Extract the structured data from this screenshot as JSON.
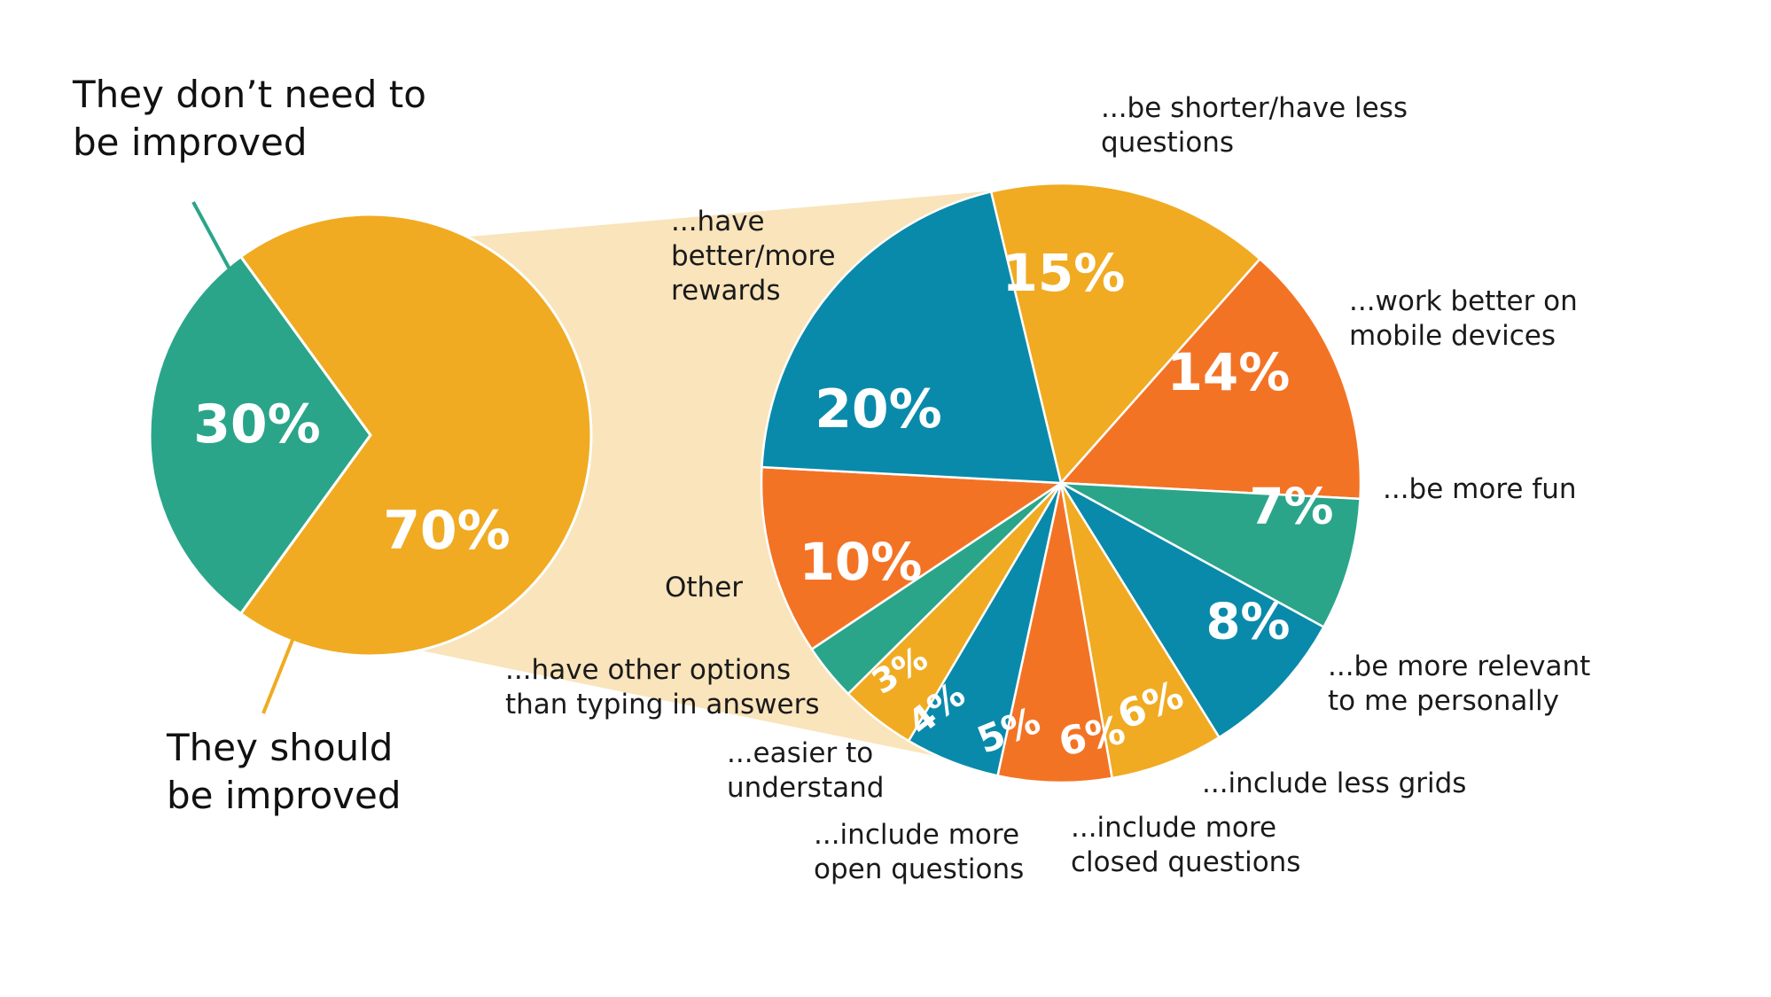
{
  "chart_data": {
    "type": "pie",
    "layout": "pie-of-pie",
    "primary": {
      "slices": [
        {
          "label": "They don’t need to be improved",
          "value": 30,
          "value_label": "30%",
          "color": "#2aa58a"
        },
        {
          "label": "They should be improved",
          "value": 70,
          "value_label": "70%",
          "color": "#f0ab22"
        }
      ]
    },
    "secondary": {
      "expands_slice": "They should be improved",
      "slices": [
        {
          "label": "...be shorter/have less questions",
          "value": 15,
          "value_label": "15%",
          "color": "#f0ab22"
        },
        {
          "label": "...work better on mobile devices",
          "value": 14,
          "value_label": "14%",
          "color": "#f37325"
        },
        {
          "label": "...be more fun",
          "value": 7,
          "value_label": "7%",
          "color": "#2aa58a"
        },
        {
          "label": "...be more relevant to me personally",
          "value": 8,
          "value_label": "8%",
          "color": "#0a8aab"
        },
        {
          "label": "...include less grids",
          "value": 6,
          "value_label": "6%",
          "color": "#f0ab22"
        },
        {
          "label": "...include more closed questions",
          "value": 6,
          "value_label": "6%",
          "color": "#f37325"
        },
        {
          "label": "...include more open questions",
          "value": 5,
          "value_label": "5%",
          "color": "#0a8aab"
        },
        {
          "label": "...easier to understand",
          "value": 4,
          "value_label": "4%",
          "color": "#f0ab22"
        },
        {
          "label": "...have other options than typing in answers",
          "value": 3,
          "value_label": "3%",
          "color": "#2aa58a"
        },
        {
          "label": "Other",
          "value": 10,
          "value_label": "10%",
          "color": "#f37325"
        },
        {
          "label": "...have better/more rewards",
          "value": 20,
          "value_label": "20%",
          "color": "#0a8aab"
        }
      ]
    },
    "connector_color": "#f9e4bb",
    "legend": "none",
    "grid": false
  }
}
